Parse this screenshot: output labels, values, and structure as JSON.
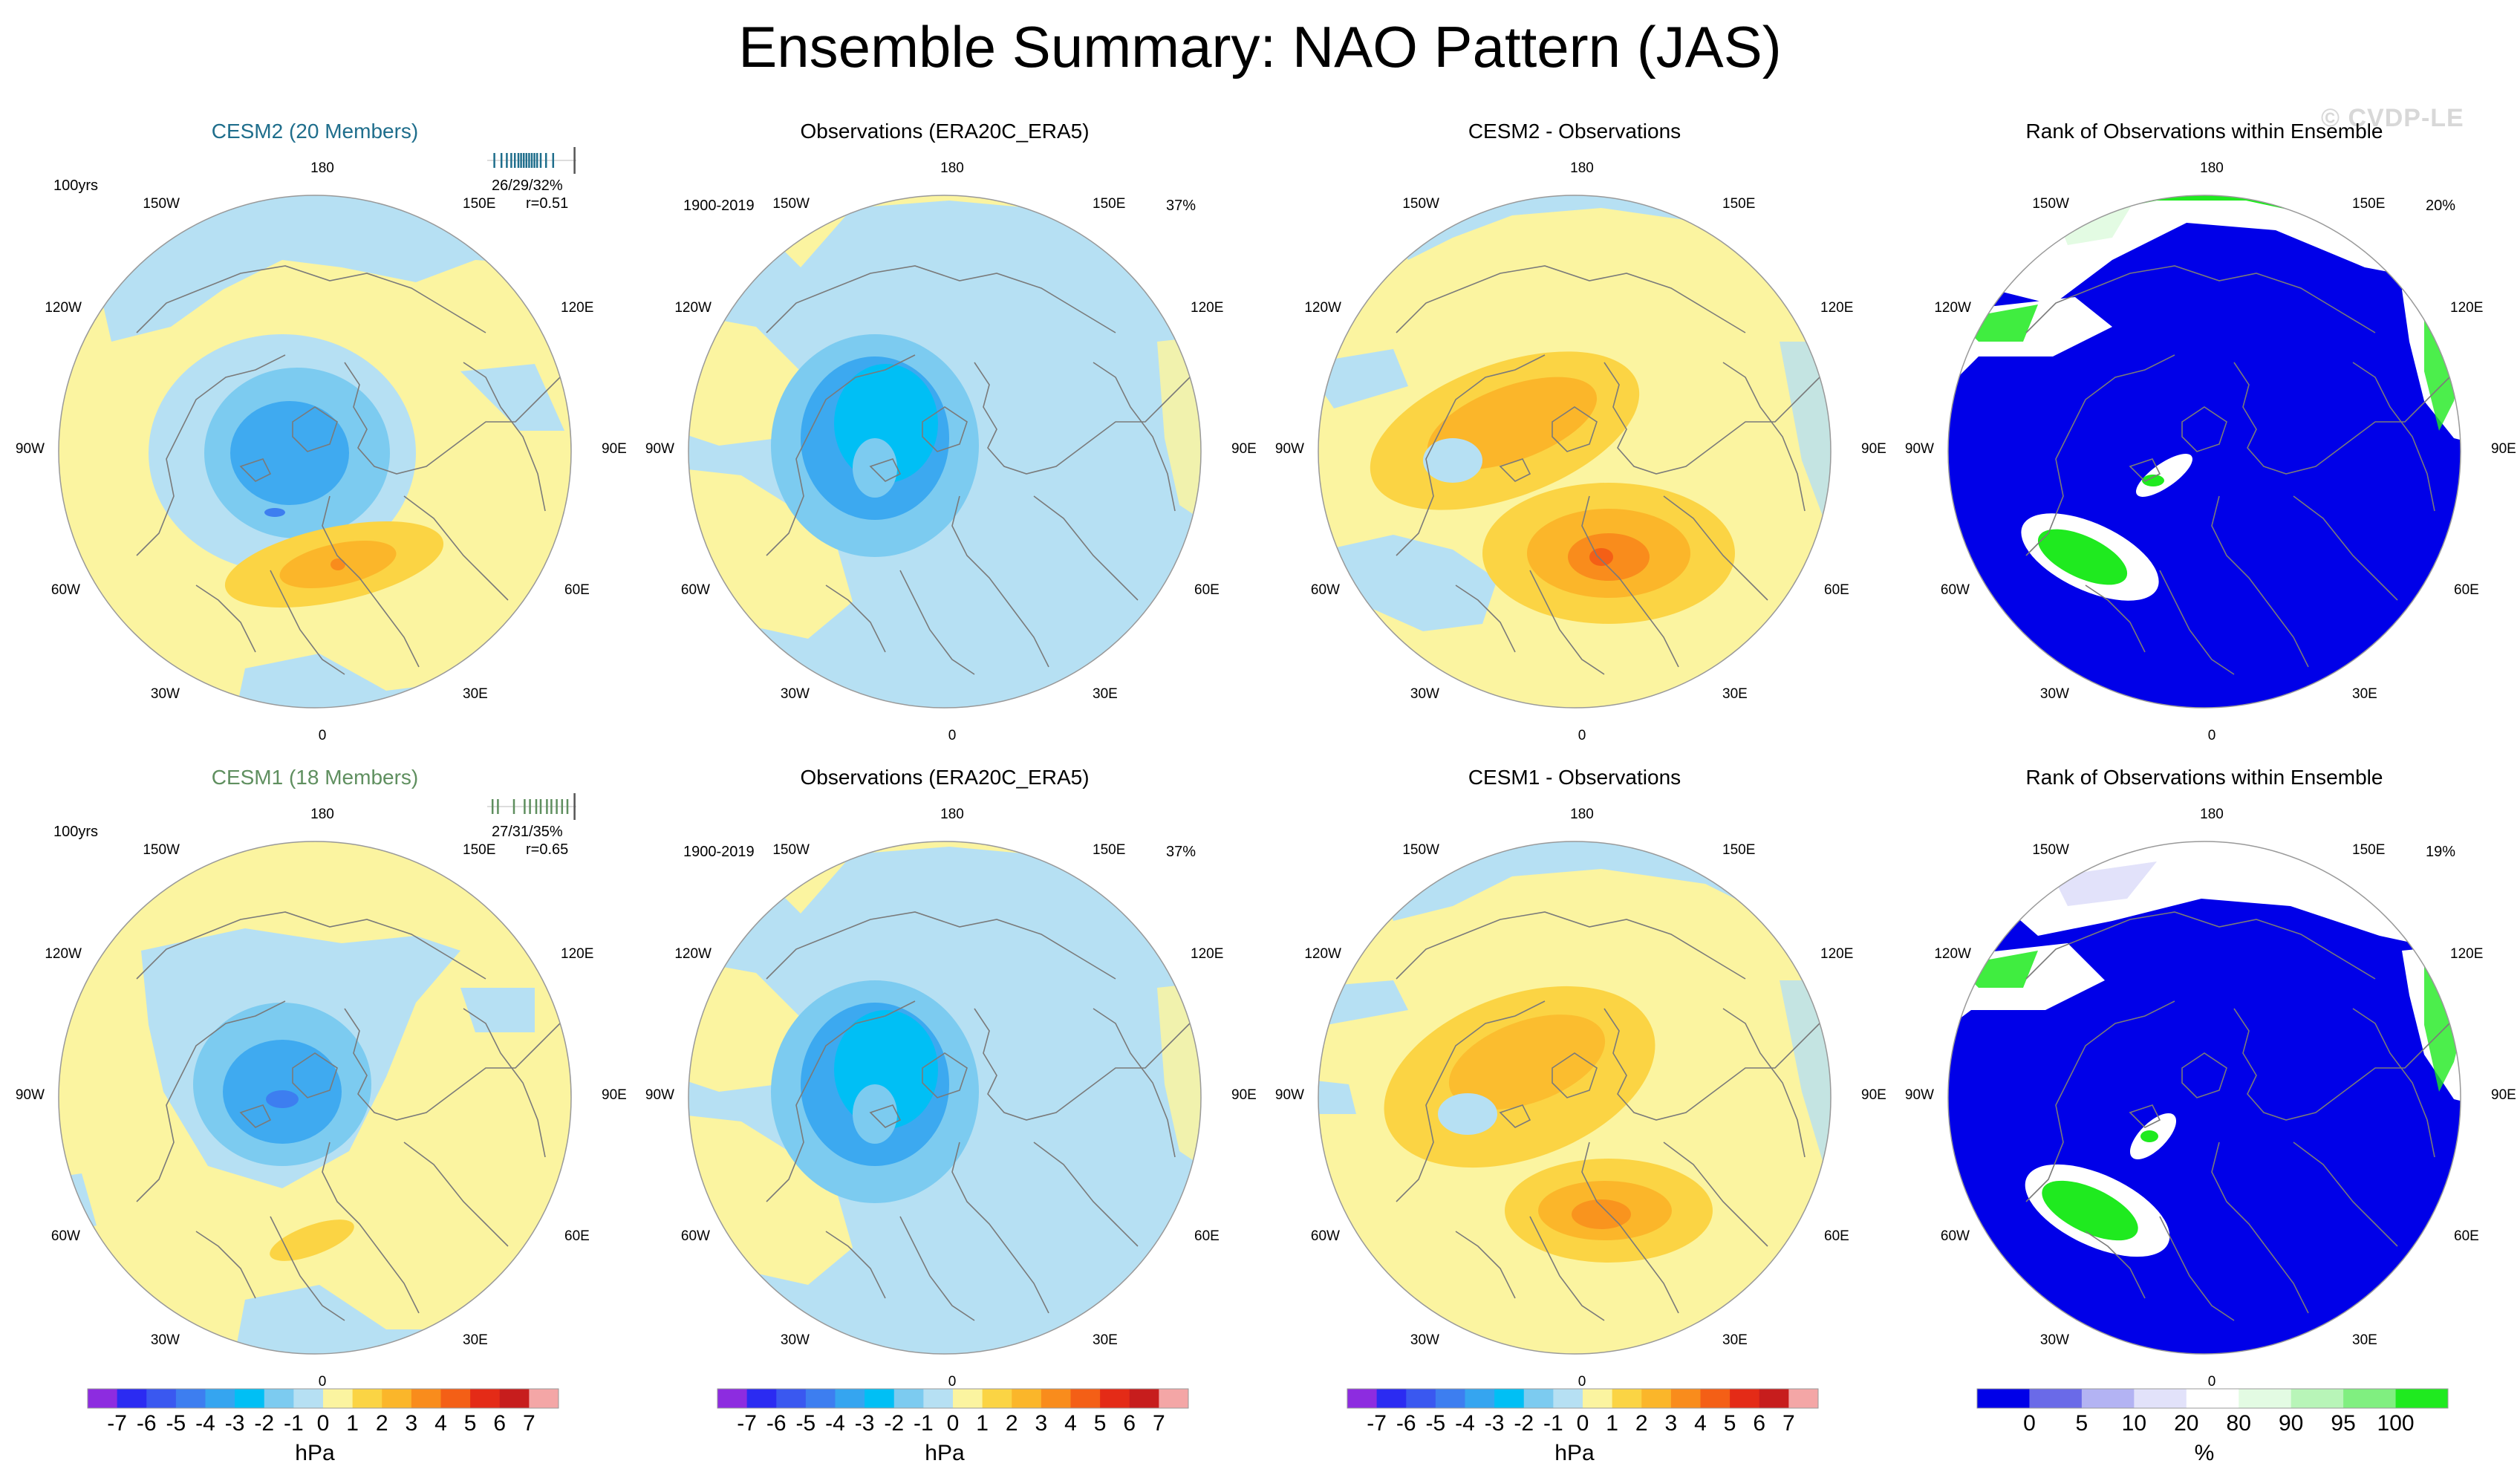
{
  "title": "Ensemble Summary: NAO Pattern (JAS)",
  "watermark": "© CVDP-LE",
  "colors": {
    "pressure_scale": [
      "#8d2ce0",
      "#2b2bf2",
      "#3a58f0",
      "#3d7ef0",
      "#35a5f0",
      "#00bff5",
      "#7ccbf0",
      "#b6e0f3",
      "#fbf4a0",
      "#fbd444",
      "#fbb62a",
      "#f98c1c",
      "#f45f16",
      "#e42b17",
      "#c71d1d",
      "#f4a6a6"
    ],
    "rank_scale": [
      "#0000e8",
      "#6a6ae8",
      "#b3b3f3",
      "#e2e2fa",
      "#ffffff",
      "#e3fbe3",
      "#b8f5b8",
      "#80ef80",
      "#1fea1f"
    ],
    "coastline": "#7a7a7a"
  },
  "pressure_colorbar": {
    "labels": [
      "-7",
      "-6",
      "-5",
      "-4",
      "-3",
      "-2",
      "-1",
      "0",
      "1",
      "2",
      "3",
      "4",
      "5",
      "6",
      "7"
    ],
    "unit": "hPa"
  },
  "rank_colorbar": {
    "labels": [
      "0",
      "5",
      "10",
      "20",
      "80",
      "90",
      "95",
      "100"
    ],
    "unit": "%"
  },
  "polar_labels": {
    "top": "180",
    "bottom": "0",
    "upper_left": "150W",
    "upper_right": "150E",
    "left_high": "120W",
    "right_high": "120E",
    "left": "90W",
    "right": "90E",
    "left_low": "60W",
    "right_low": "60E",
    "lower_left": "30W",
    "lower_right": "30E"
  },
  "rows": [
    {
      "model_panel": {
        "title": "CESM2 (20 Members)",
        "period": "100yrs",
        "stats": "26/29/32%",
        "correlation": "r=0.51",
        "tick_color": "#1f6e8c",
        "member_ticks": [
          0.08,
          0.16,
          0.22,
          0.27,
          0.31,
          0.35,
          0.38,
          0.41,
          0.44,
          0.47,
          0.5,
          0.53,
          0.56,
          0.6,
          0.66,
          0.74
        ],
        "obs_tick": 0.98
      },
      "obs_panel": {
        "title": "Observations (ERA20C_ERA5)",
        "period": "1900-2019",
        "variance": "37%"
      },
      "diff_panel": {
        "title": "CESM2 - Observations"
      },
      "rank_panel": {
        "title": "Rank of Observations within Ensemble",
        "percent": "20%"
      }
    },
    {
      "model_panel": {
        "title": "CESM1 (18 Members)",
        "period": "100yrs",
        "stats": "27/31/35%",
        "correlation": "r=0.65",
        "tick_color": "#5f8f5f",
        "member_ticks": [
          0.06,
          0.12,
          0.3,
          0.42,
          0.48,
          0.55,
          0.6,
          0.67,
          0.72,
          0.78,
          0.84,
          0.9
        ],
        "obs_tick": 0.98
      },
      "obs_panel": {
        "title": "Observations (ERA20C_ERA5)",
        "period": "1900-2019",
        "variance": "37%"
      },
      "diff_panel": {
        "title": "CESM1 - Observations"
      },
      "rank_panel": {
        "title": "Rank of Observations within Ensemble",
        "percent": "19%"
      }
    }
  ],
  "chart_data": [
    {
      "type": "heatmap",
      "projection": "polar stereographic",
      "title": "CESM2 (20 Members)",
      "unit": "hPa",
      "color_levels": [
        -7,
        -6,
        -5,
        -4,
        -3,
        -2,
        -1,
        0,
        1,
        2,
        3,
        4,
        5,
        6,
        7
      ],
      "pattern_variance": "26/29/32%",
      "pattern_correlation": 0.51
    },
    {
      "type": "heatmap",
      "projection": "polar stereographic",
      "title": "Observations (ERA20C_ERA5)",
      "unit": "hPa",
      "period": "1900-2019",
      "pattern_variance": "37%"
    },
    {
      "type": "heatmap",
      "projection": "polar stereographic",
      "title": "CESM2 - Observations",
      "unit": "hPa"
    },
    {
      "type": "heatmap",
      "projection": "polar stereographic",
      "title": "Rank of Observations within Ensemble",
      "unit": "%",
      "color_levels": [
        0,
        5,
        10,
        20,
        80,
        90,
        95,
        100
      ],
      "value": "20%"
    },
    {
      "type": "heatmap",
      "projection": "polar stereographic",
      "title": "CESM1 (18 Members)",
      "unit": "hPa",
      "pattern_variance": "27/31/35%",
      "pattern_correlation": 0.65
    },
    {
      "type": "heatmap",
      "projection": "polar stereographic",
      "title": "Observations (ERA20C_ERA5)",
      "unit": "hPa",
      "period": "1900-2019",
      "pattern_variance": "37%"
    },
    {
      "type": "heatmap",
      "projection": "polar stereographic",
      "title": "CESM1 - Observations",
      "unit": "hPa"
    },
    {
      "type": "heatmap",
      "projection": "polar stereographic",
      "title": "Rank of Observations within Ensemble",
      "unit": "%",
      "value": "19%"
    }
  ]
}
